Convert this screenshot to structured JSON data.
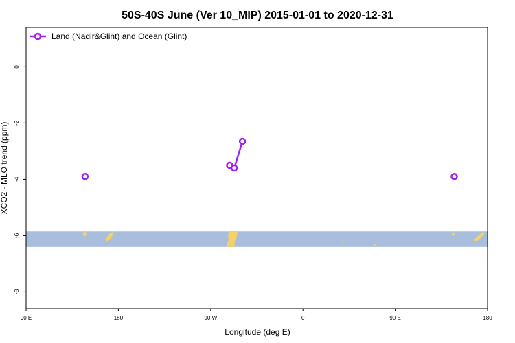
{
  "chart_data": {
    "type": "line",
    "title": "50S-40S June (Ver 10_MIP)   2015-01-01 to 2020-12-31",
    "xlabel": "Longitude (deg E)",
    "ylabel": "XCO2 - MLO trend (ppm)",
    "x_axis": {
      "range_deg": [
        90,
        450
      ],
      "ticks": [
        {
          "value": 90,
          "label": "90 E"
        },
        {
          "value": 180,
          "label": "180"
        },
        {
          "value": 270,
          "label": "90 W"
        },
        {
          "value": 360,
          "label": "0"
        },
        {
          "value": 450,
          "label": "90 E"
        },
        {
          "value": 540,
          "label": "180"
        }
      ],
      "plot_range": [
        90,
        540
      ]
    },
    "y_axis": {
      "range": [
        -8.6,
        1.4
      ],
      "ticks": [
        0,
        -2,
        -4,
        -6,
        -8
      ]
    },
    "grid": false,
    "legend": {
      "position": "top-left",
      "entries": [
        "Land (Nadir&Glint) and Ocean (Glint)"
      ]
    },
    "series": [
      {
        "name": "Land (Nadir&Glint) and Ocean (Glint)",
        "color": "#a020f0",
        "segments": [
          [
            {
              "x": 147.5,
              "y": -3.9
            }
          ],
          [
            {
              "x": 288.5,
              "y": -3.5
            },
            {
              "x": 293,
              "y": -3.6
            },
            {
              "x": 301,
              "y": -2.65
            }
          ],
          [
            {
              "x": 507.5,
              "y": -3.9
            }
          ]
        ]
      }
    ],
    "latitude_band": {
      "y_top": -5.85,
      "y_bottom": -6.4,
      "ocean_color": "#a8bedc",
      "land_color": "#f5d264"
    }
  }
}
